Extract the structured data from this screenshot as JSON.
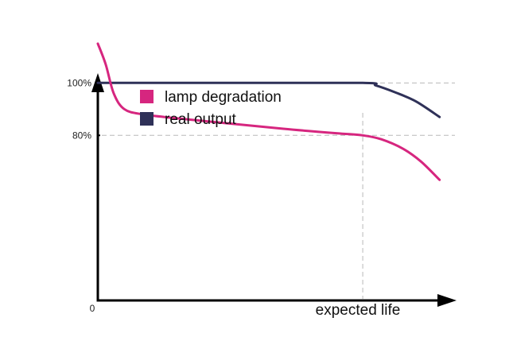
{
  "chart_data": {
    "type": "line",
    "title": "",
    "xlabel": "expected life",
    "ylabel": "",
    "origin_label": "0",
    "y_ticks": [
      {
        "value": 100,
        "label": "100%"
      },
      {
        "value": 80,
        "label": "80%"
      }
    ],
    "x_reference_line": 1.0,
    "xlim": [
      0,
      1.36
    ],
    "ylim": [
      17,
      118
    ],
    "grid": false,
    "legend": {
      "placement": "top-left"
    },
    "series": [
      {
        "name": "lamp degradation",
        "color": "#d6267f",
        "x": [
          0,
          0.03,
          0.06,
          0.1,
          0.17,
          0.3,
          0.5,
          0.7,
          0.9,
          1.0,
          1.07,
          1.15,
          1.22,
          1.29
        ],
        "y": [
          115,
          107,
          96,
          90,
          88,
          86.5,
          84.5,
          82.5,
          80.8,
          80,
          78.5,
          75,
          70,
          63
        ]
      },
      {
        "name": "real output",
        "color": "#2f3158",
        "x": [
          0,
          0.5,
          1.0,
          1.05,
          1.12,
          1.2,
          1.29
        ],
        "y": [
          100,
          100,
          100,
          99,
          96.5,
          93,
          87
        ]
      }
    ]
  }
}
